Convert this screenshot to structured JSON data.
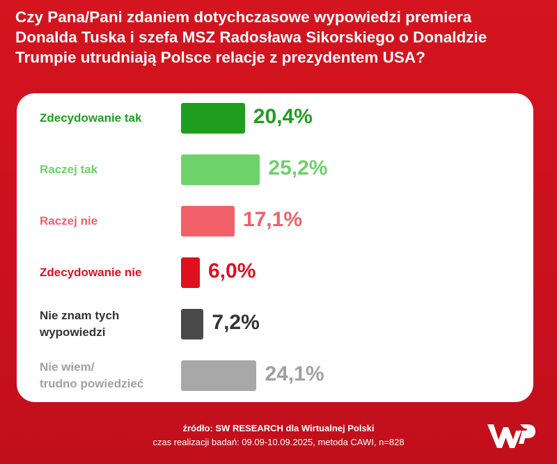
{
  "title_lines": [
    "Czy Pana/Pani zdaniem dotychczasowe wypowiedzi premiera",
    "Donalda Tuska i szefa MSZ Radosława Sikorskiego o Donaldzie",
    "Trumpie utrudniają Polsce relacje z prezydentem USA?"
  ],
  "chart_data": {
    "type": "bar",
    "orientation": "horizontal",
    "categories": [
      [
        "Zdecydowanie tak"
      ],
      [
        "Raczej tak"
      ],
      [
        "Raczej nie"
      ],
      [
        "Zdecydowanie nie"
      ],
      [
        "Nie znam tych",
        "wypowiedzi"
      ],
      [
        "Nie wiem/",
        "trudno powiedzieć"
      ]
    ],
    "values": [
      20.4,
      25.2,
      17.1,
      6.0,
      7.2,
      24.1
    ],
    "value_labels": [
      "20,4%",
      "25,2%",
      "17,1%",
      "6,0%",
      "7,2%",
      "24,1%"
    ],
    "colors": [
      "#1f9e1f",
      "#6dd26a",
      "#f2606a",
      "#e0101e",
      "#4a4a4a",
      "#a8a8a8"
    ],
    "label_colors": [
      "#1f9e1f",
      "#6dd26a",
      "#f2606a",
      "#e0101e",
      "#333333",
      "#a0a0a0"
    ],
    "unit": "%",
    "grid": false,
    "legend": "none"
  },
  "footer": {
    "source": "źródło: SW RESEARCH dla Wirtualnej Polski",
    "details": "czas realizacji badań: 09.09-10.09.2025, metoda CAWI, n=828"
  },
  "logo": {
    "name": "wp-logo",
    "color": "#ffffff"
  }
}
